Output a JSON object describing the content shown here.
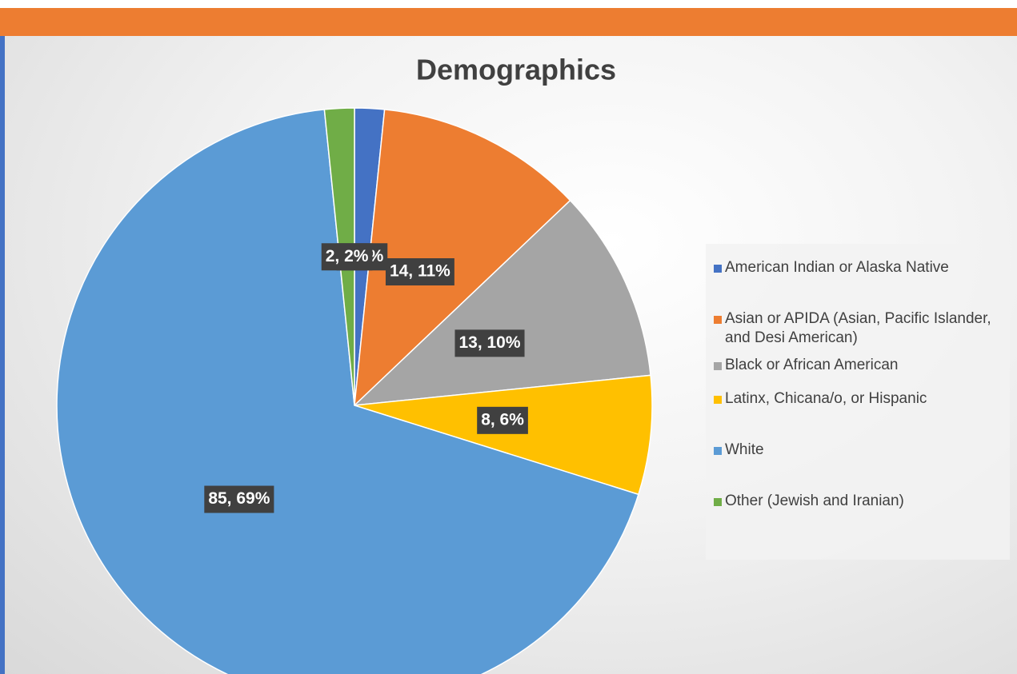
{
  "chart_data": {
    "type": "pie",
    "title": "Demographics",
    "categories": [
      "American Indian or Alaska Native",
      "Asian or APIDA (Asian, Pacific Islander, and Desi American)",
      "Black or African American",
      "Latinx, Chicana/o, or Hispanic",
      "White",
      "Other (Jewish and Iranian)"
    ],
    "values": [
      2,
      14,
      13,
      8,
      85,
      2
    ],
    "value_labels": [
      "2, 2%",
      "14, 11%",
      "13, 10%",
      "8, 6%",
      "85, 69%",
      "2, 2%"
    ],
    "colors": [
      "#4472c4",
      "#ed7d31",
      "#a5a5a5",
      "#ffc000",
      "#5b9bd5",
      "#70ad47"
    ],
    "legend": "right"
  }
}
